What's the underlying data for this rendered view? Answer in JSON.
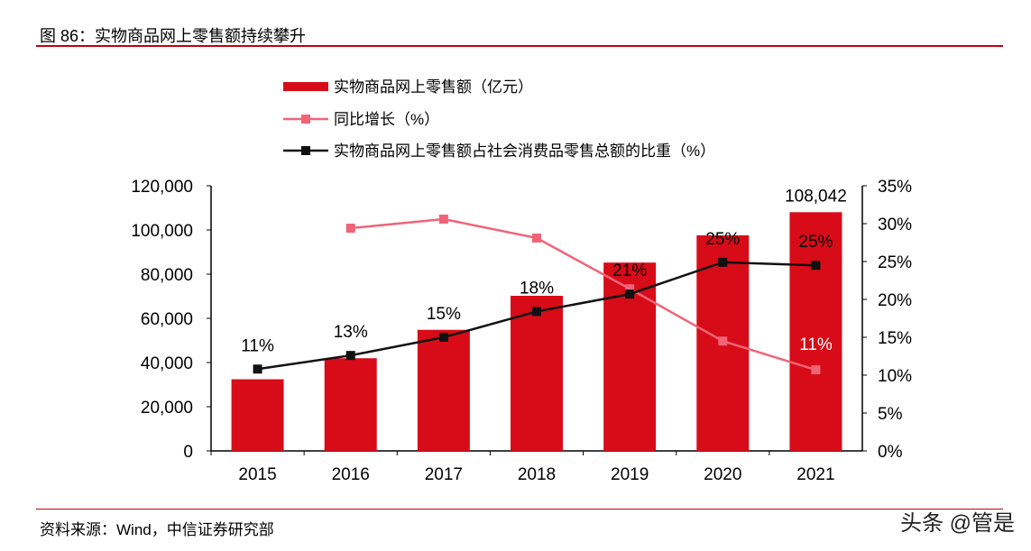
{
  "header": {
    "title": "图 86：实物商品网上零售额持续攀升"
  },
  "footer": {
    "source": "资料来源：Wind，中信证券研究部",
    "watermark": "头条 @管是"
  },
  "colors": {
    "bar": "#d70c18",
    "growth": "#f06478",
    "share": "#111111",
    "rule": "#c0000f"
  },
  "chart_data": {
    "type": "bar+line",
    "categories": [
      "2015",
      "2016",
      "2017",
      "2018",
      "2019",
      "2020",
      "2021"
    ],
    "legend_position": "top",
    "left_axis": {
      "range": [
        0,
        120000
      ],
      "ticks": [
        "0",
        "20,000",
        "40,000",
        "60,000",
        "80,000",
        "100,000",
        "120,000"
      ]
    },
    "right_axis": {
      "range": [
        0,
        35
      ],
      "ticks": [
        "0%",
        "5%",
        "10%",
        "15%",
        "20%",
        "25%",
        "30%",
        "35%"
      ]
    },
    "series": [
      {
        "name": "实物商品网上零售额（亿元）",
        "type": "bar",
        "axis": "left",
        "values": [
          32424,
          41944,
          54806,
          70198,
          85239,
          97590,
          108042
        ],
        "data_labels": {
          "6": "108,042"
        }
      },
      {
        "name": "同比增长（%）",
        "type": "line",
        "axis": "right",
        "values": [
          null,
          29.4,
          30.6,
          28.1,
          21.4,
          14.5,
          10.7
        ],
        "data_labels": {
          "6": "11%"
        }
      },
      {
        "name": "实物商品网上零售额占社会消费品零售总额的比重（%）",
        "type": "line",
        "axis": "right",
        "values": [
          10.8,
          12.6,
          15.0,
          18.4,
          20.7,
          24.9,
          24.5
        ],
        "data_labels": [
          "11%",
          "13%",
          "15%",
          "18%",
          "21%",
          "25%",
          "25%"
        ]
      }
    ],
    "grid": false
  }
}
